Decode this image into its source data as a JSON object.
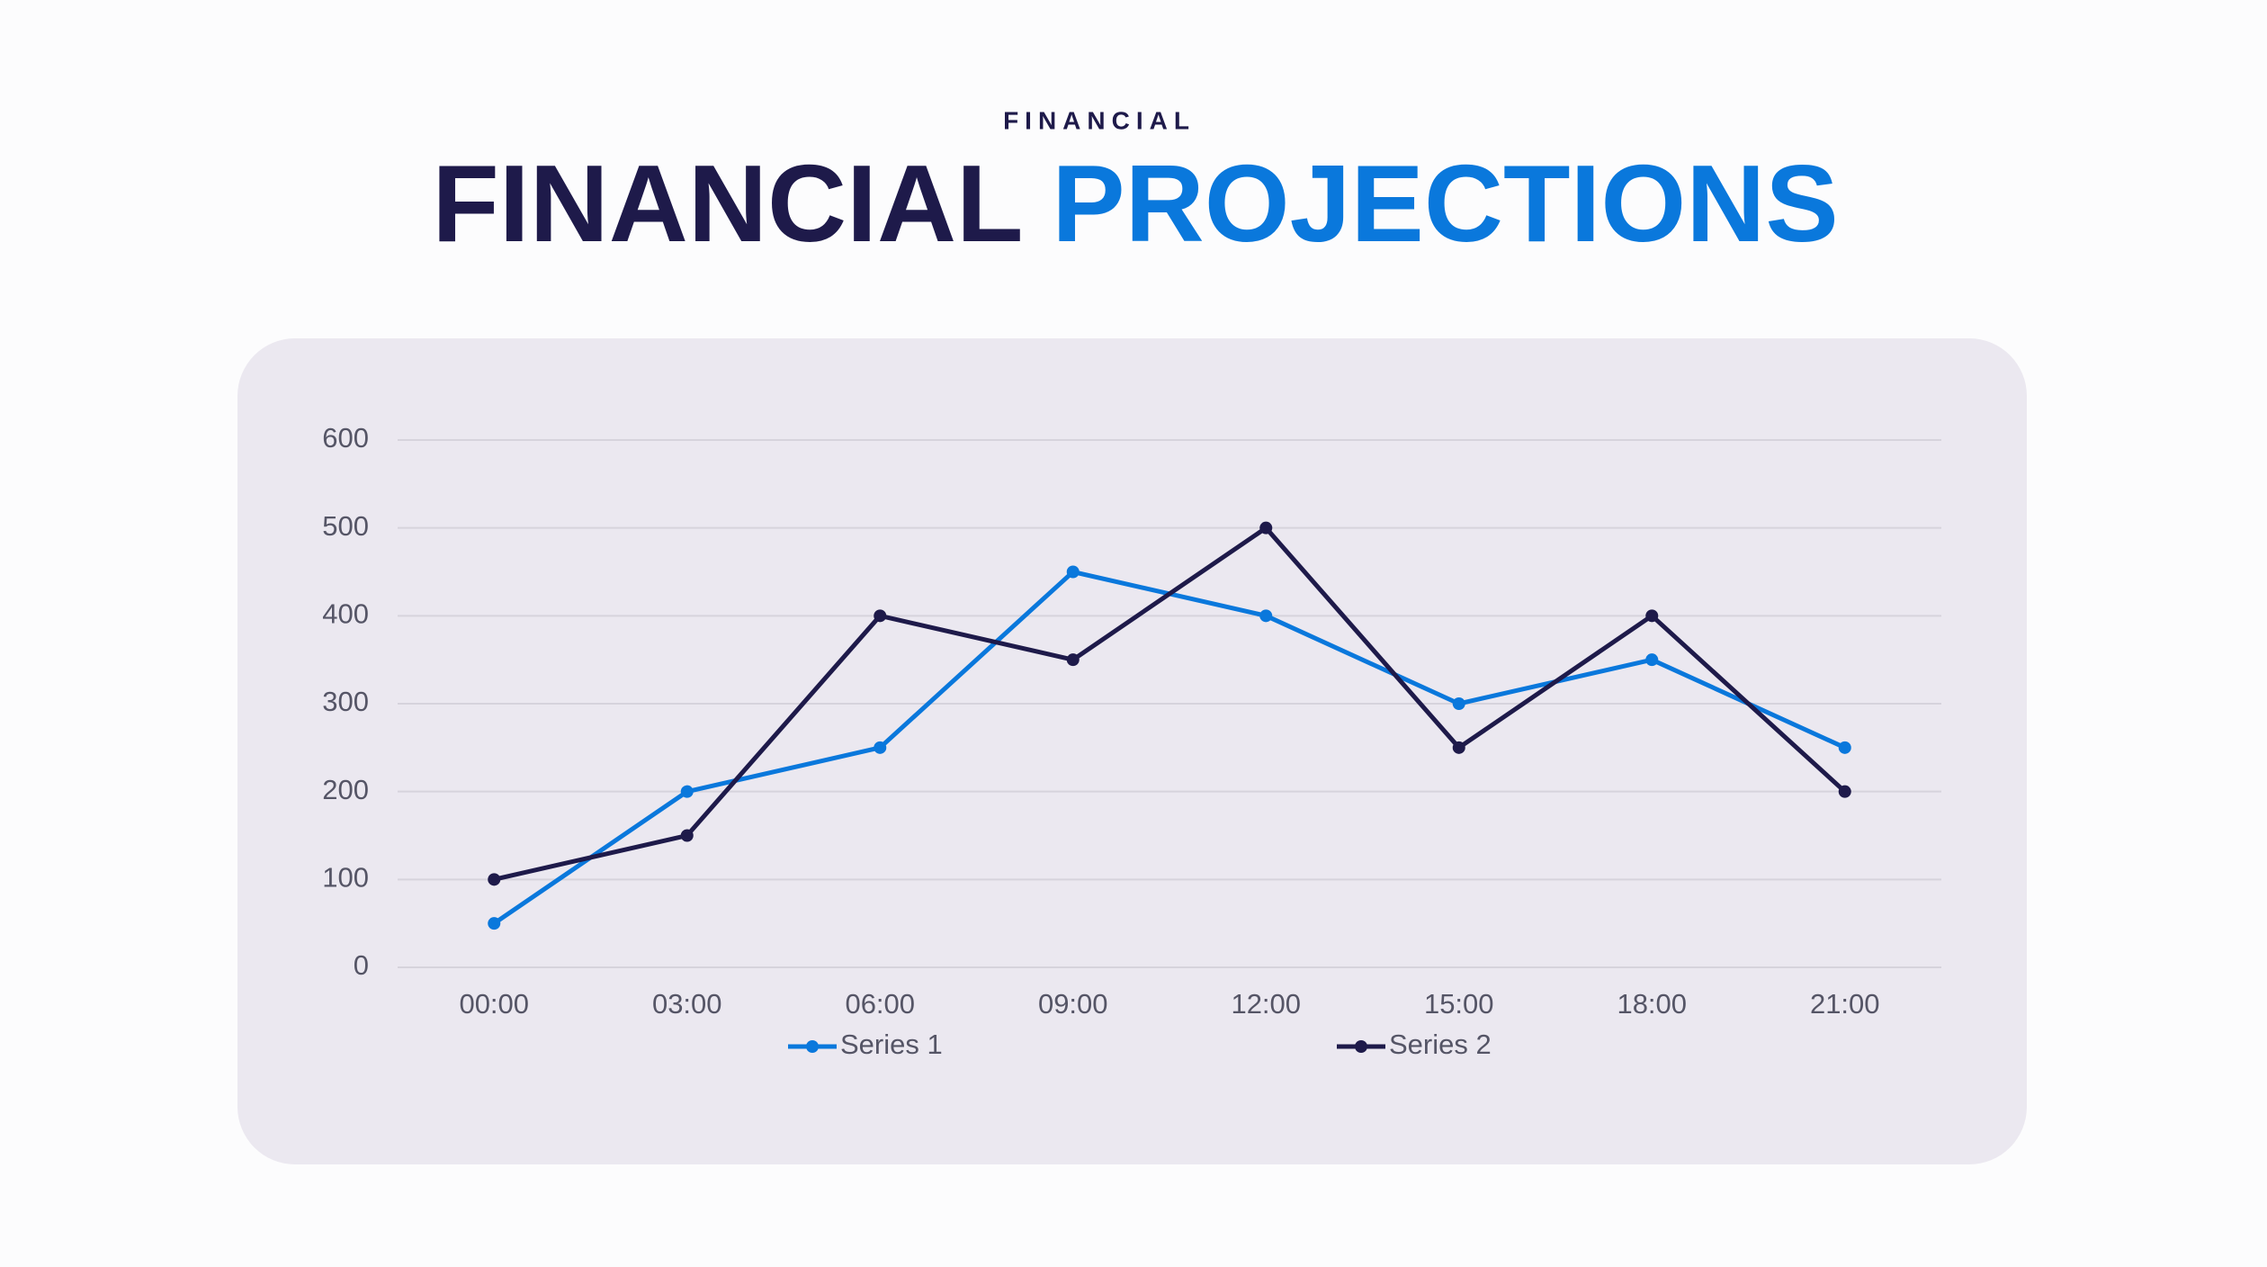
{
  "kicker": "FINANCIAL",
  "title_parts": [
    "FINANCIAL",
    "PROJECTIONS"
  ],
  "chart_data": {
    "type": "line",
    "categories": [
      "00:00",
      "03:00",
      "06:00",
      "09:00",
      "12:00",
      "15:00",
      "18:00",
      "21:00"
    ],
    "series": [
      {
        "name": "Series 1",
        "color": "#0a78dc",
        "values": [
          50,
          200,
          250,
          450,
          400,
          300,
          350,
          250
        ]
      },
      {
        "name": "Series 2",
        "color": "#1e1a4a",
        "values": [
          100,
          150,
          400,
          350,
          500,
          250,
          400,
          200
        ]
      }
    ],
    "ylim": [
      0,
      600
    ],
    "yticks": [
      0,
      100,
      200,
      300,
      400,
      500,
      600
    ],
    "grid": true,
    "legend": "bottom"
  }
}
